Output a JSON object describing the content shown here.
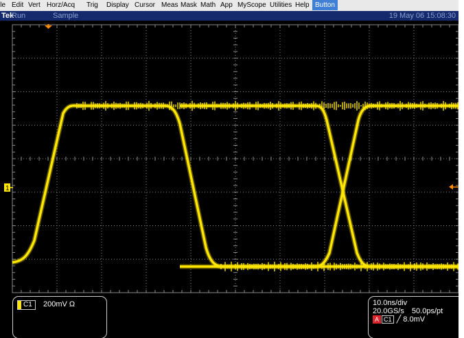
{
  "menubar": {
    "items": [
      {
        "label": "ile",
        "active": false
      },
      {
        "label": "Edit",
        "active": false
      },
      {
        "label": "Vert",
        "active": false
      },
      {
        "label": "Horz/Acq",
        "active": false
      },
      {
        "label": "Trig",
        "active": false
      },
      {
        "label": "Display",
        "active": false
      },
      {
        "label": "Cursor",
        "active": false
      },
      {
        "label": "Meas",
        "active": false
      },
      {
        "label": "Mask",
        "active": false
      },
      {
        "label": "Math",
        "active": false
      },
      {
        "label": "App",
        "active": false
      },
      {
        "label": "MyScope",
        "active": false
      },
      {
        "label": "Utilities",
        "active": false
      },
      {
        "label": "Help",
        "active": false
      },
      {
        "label": "Button",
        "active": true
      }
    ]
  },
  "status": {
    "brand": "Tek",
    "run_state": "Run",
    "acq_mode": "Sample",
    "datetime": "19 May 06 15:08:30"
  },
  "graticule": {
    "divisions_x": 10,
    "divisions_y": 8,
    "grid_color": "#8a8a8a",
    "trace_color": "#ffe600",
    "background": "#000000"
  },
  "markers": {
    "channel_marker_label": "1",
    "channel_marker_color": "#ffe600",
    "trigger_position_color": "#ff8a00",
    "trigger_level_color": "#ff8a00"
  },
  "channel": {
    "tag": "C1",
    "scale": "200mV Ω",
    "color": "#ffe600"
  },
  "timebase": {
    "time_per_div": "10.0ns/div",
    "sample_rate": "20.0GS/s",
    "resolution": "50.0ps/pt",
    "trigger_tag_a": "A",
    "trigger_tag_ch": "C1",
    "trigger_level": "8.0mV",
    "trigger_slope_icon": "rising-edge-icon"
  }
}
